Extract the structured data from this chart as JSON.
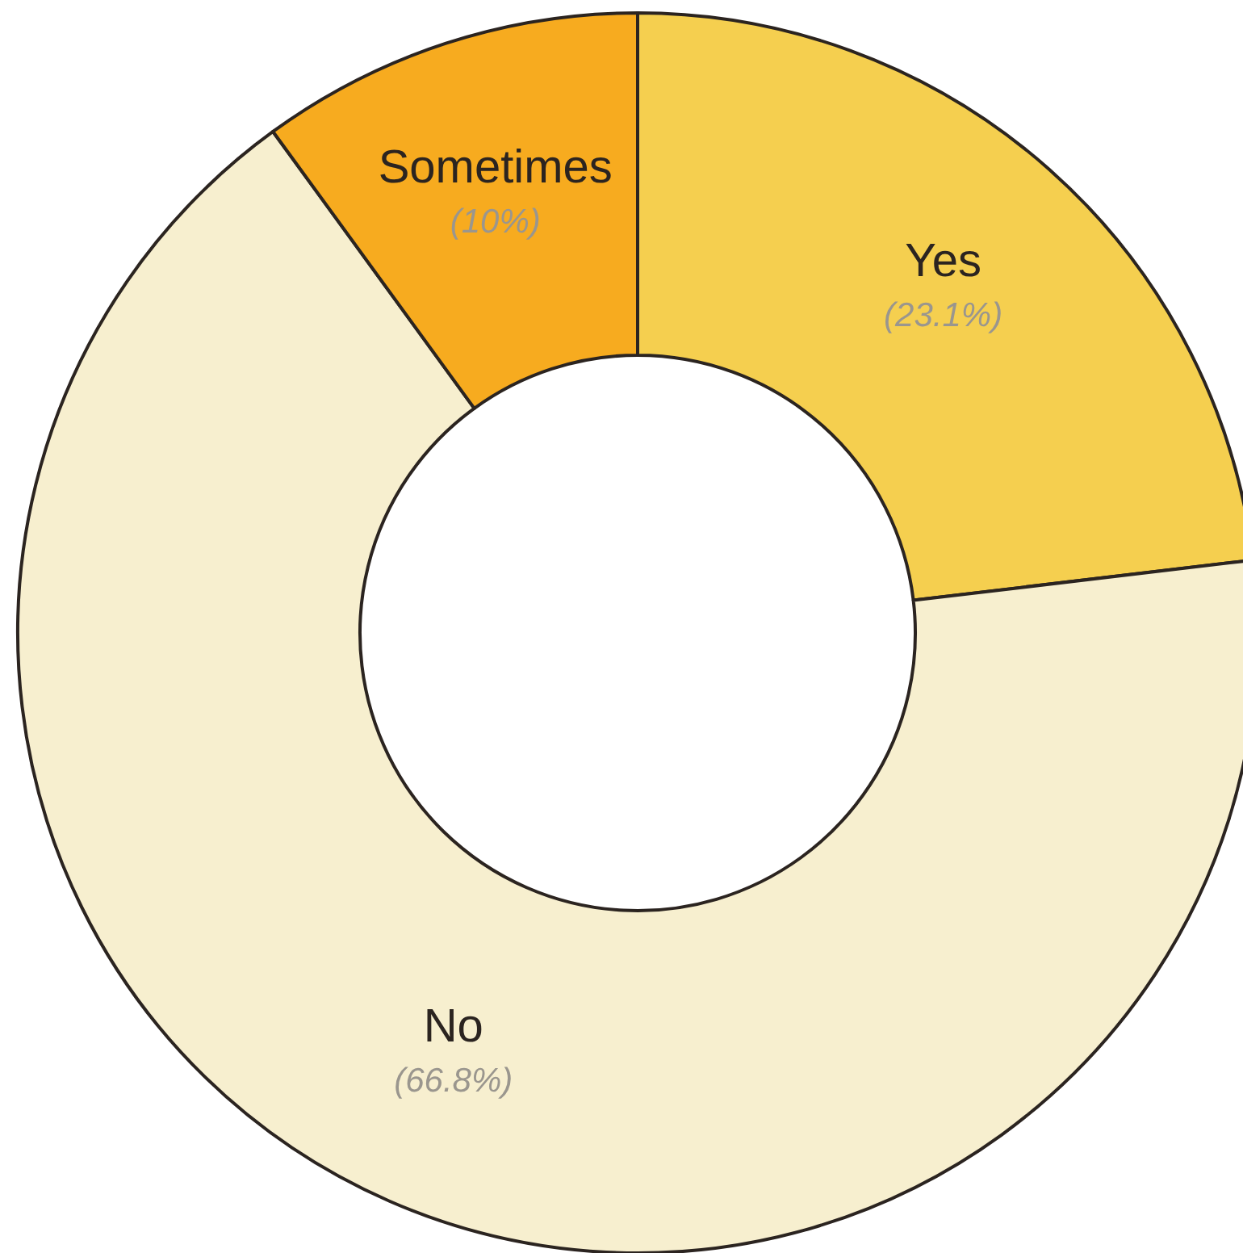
{
  "chart_data": {
    "type": "donut",
    "categories": [
      "Yes",
      "No",
      "Sometimes"
    ],
    "values": [
      23.1,
      66.8,
      10
    ],
    "colors": [
      "#f5cf4f",
      "#f7efcf",
      "#f7ab1f"
    ],
    "value_labels": [
      "(23.1%)",
      "(66.8%)",
      "(10%)"
    ]
  }
}
